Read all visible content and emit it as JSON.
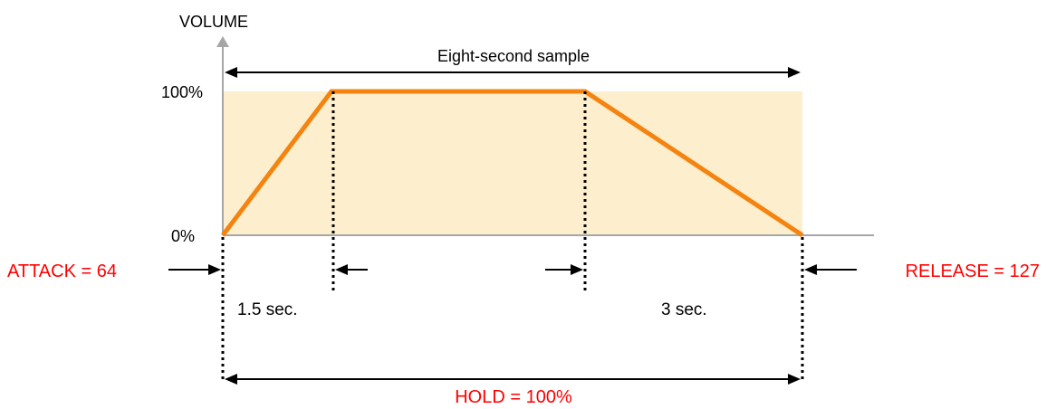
{
  "axis": {
    "y_title": "VOLUME",
    "y_tick_top": "100%",
    "y_tick_bottom": "0%"
  },
  "sample": {
    "label": "Eight-second sample",
    "duration_sec": 8
  },
  "envelope": {
    "points": [
      {
        "t": 0,
        "v": 0
      },
      {
        "t": 1.5,
        "v": 100
      },
      {
        "t": 5,
        "v": 100
      },
      {
        "t": 8,
        "v": 0
      }
    ]
  },
  "annotations": {
    "attack_label": "ATTACK = 64",
    "release_label": "RELEASE = 127",
    "hold_label": "HOLD = 100%",
    "attack_time": "1.5 sec.",
    "release_time": "3 sec."
  },
  "colors": {
    "envelope": "#f5830f",
    "fill": "#fdeecd",
    "axis": "#a6a6a6",
    "highlight_text": "#ff0000",
    "text": "#000000"
  }
}
